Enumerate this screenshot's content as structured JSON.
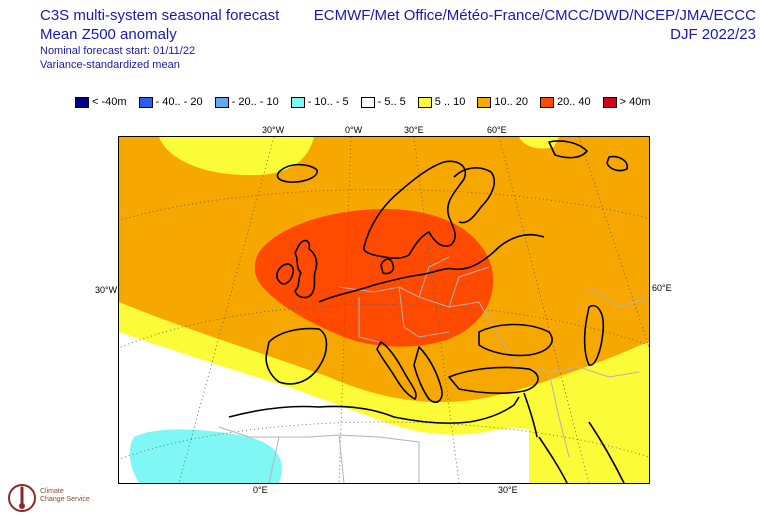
{
  "header": {
    "title_line1": "C3S multi-system seasonal forecast",
    "title_line2": "Mean Z500 anomaly",
    "subtitle_line1": "Nominal forecast start: 01/11/22",
    "subtitle_line2": "Variance-standardized mean",
    "systems": "ECMWF/Met Office/Météo-France/CMCC/DWD/NCEP/JMA/ECCC",
    "season": "DJF 2022/23"
  },
  "legend": [
    {
      "label": "< -40m",
      "color": "#00008b"
    },
    {
      "label": "- 40.. - 20",
      "color": "#2a5bf2"
    },
    {
      "label": "- 20.. - 10",
      "color": "#62a8f5"
    },
    {
      "label": "- 10.. - 5",
      "color": "#7ff7f5"
    },
    {
      "label": "- 5.. 5",
      "color": "#ffffff"
    },
    {
      "label": "5 .. 10",
      "color": "#fbfb37"
    },
    {
      "label": "10.. 20",
      "color": "#f7a800"
    },
    {
      "label": "20.. 40",
      "color": "#ff4a00"
    },
    {
      "label": "> 40m",
      "color": "#d30018"
    }
  ],
  "coords": {
    "top_30w": "30°W",
    "top_0w": "0°W",
    "top_30e": "30°E",
    "top_60e": "60°E",
    "left_30w": "30°W",
    "right_60e": "60°E",
    "bottom_0e": "0°E",
    "bottom_30e": "30°E"
  },
  "logo": {
    "line1": "Climate",
    "line2": "Change Service"
  }
}
